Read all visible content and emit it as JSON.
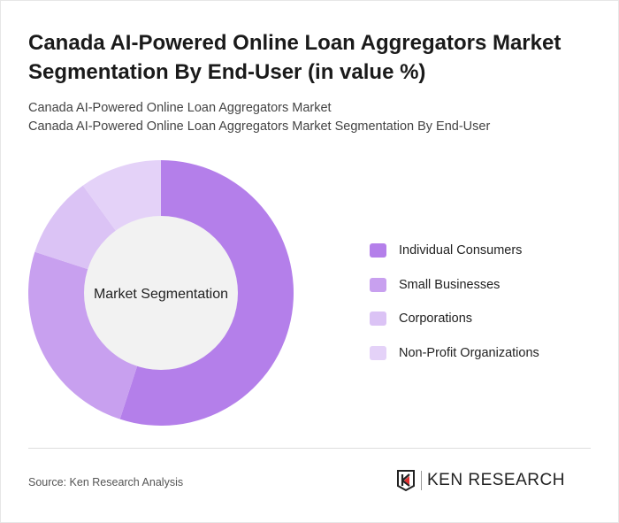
{
  "title": "Canada AI-Powered Online Loan Aggregators Market Segmentation By End-User (in value %)",
  "subtitle_lines": [
    "Canada AI-Powered Online Loan Aggregators Market",
    "Canada AI-Powered Online Loan Aggregators Market Segmentation By End-User"
  ],
  "source": "Source: Ken Research Analysis",
  "logo_text": "KEN RESEARCH",
  "chart_data": {
    "type": "pie",
    "variant": "donut",
    "center_label": "Market Segmentation",
    "categories": [
      "Individual Consumers",
      "Small Businesses",
      "Corporations",
      "Non-Profit Organizations"
    ],
    "values": [
      55,
      25,
      10,
      10
    ],
    "colors": [
      "#b47fea",
      "#c8a0ef",
      "#dbc3f5",
      "#e4d2f8"
    ],
    "center_color": "#f2f2f2",
    "legend_position": "right"
  }
}
